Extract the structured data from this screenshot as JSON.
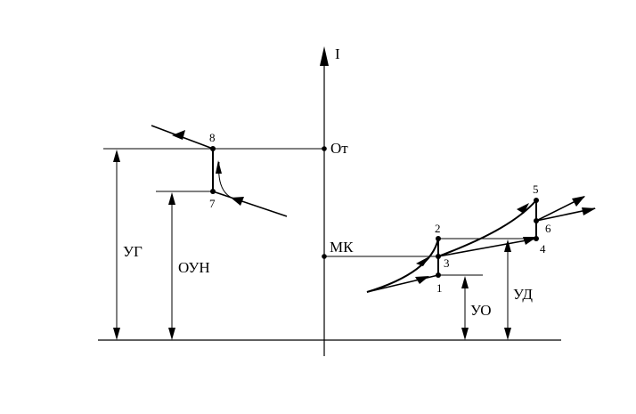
{
  "axis": {
    "vertical_label": "I"
  },
  "levels": {
    "ot": "Oт",
    "mk": "МК"
  },
  "dimensions": {
    "ug": "УГ",
    "oun": "ОУН",
    "uo": "УО",
    "ud": "УД"
  },
  "points": {
    "p1": "1",
    "p2": "2",
    "p3": "3",
    "p4": "4",
    "p5": "5",
    "p6": "6",
    "p7": "7",
    "p8": "8"
  }
}
